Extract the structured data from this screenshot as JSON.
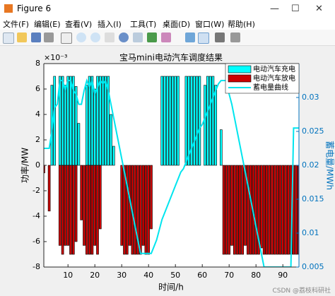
{
  "window": {
    "title": "Figure 6",
    "menus": [
      "文件(F)",
      "编辑(E)",
      "查看(V)",
      "插入(I)",
      "工具(T)",
      "桌面(D)",
      "窗口(W)",
      "帮助(H)"
    ]
  },
  "watermark": "CSDN @荔枝科研社",
  "chart_data": {
    "type": "bar",
    "title": "宝马mini电动汽车调度结果",
    "xlabel": "时间/h",
    "ylabel": "功率/MW",
    "y2label": "蓄电量/MWh",
    "y_exponent": "×10⁻³",
    "x": [
      1,
      2,
      3,
      4,
      5,
      6,
      7,
      8,
      9,
      10,
      11,
      12,
      13,
      14,
      15,
      16,
      17,
      18,
      19,
      20,
      21,
      22,
      23,
      24,
      25,
      26,
      27,
      28,
      29,
      30,
      31,
      32,
      33,
      34,
      35,
      36,
      37,
      38,
      39,
      40,
      41,
      42,
      43,
      44,
      45,
      46,
      47,
      48,
      49,
      50,
      51,
      52,
      53,
      54,
      55,
      56,
      57,
      58,
      59,
      60,
      61,
      62,
      63,
      64,
      65,
      66,
      67,
      68,
      69,
      70,
      71,
      72,
      73,
      74,
      75,
      76,
      77,
      78,
      79,
      80,
      81,
      82,
      83,
      84,
      85,
      86,
      87,
      88,
      89,
      90,
      91,
      92,
      93,
      94,
      95,
      96
    ],
    "series": [
      {
        "name": "电动汽车充电",
        "type": "bar",
        "color": "#00ffff",
        "values": [
          0,
          0,
          0,
          6.3,
          7,
          0,
          7,
          7,
          6.3,
          7,
          7,
          7,
          6.2,
          3.3,
          0,
          0,
          6.3,
          7,
          7,
          6,
          7,
          7,
          7,
          7,
          7,
          4,
          1.5,
          0,
          0,
          0,
          0,
          0,
          0,
          0,
          0,
          0,
          0,
          0,
          0,
          0,
          0,
          0,
          0,
          0,
          7,
          7,
          7,
          7,
          7,
          7,
          7,
          0,
          0,
          7,
          7,
          7,
          7,
          7,
          7,
          0,
          6.3,
          7,
          7,
          7,
          6.3,
          0,
          2.8,
          0,
          0,
          0,
          0,
          0,
          0,
          0,
          0,
          0,
          0,
          0,
          0,
          0,
          0,
          0,
          0,
          0,
          0,
          0,
          0,
          0,
          0,
          0,
          0,
          0,
          0,
          0,
          0,
          0
        ]
      },
      {
        "name": "电动汽车放电",
        "type": "bar",
        "color": "#cc0000",
        "values": [
          -0.6,
          0,
          -3.6,
          0,
          0,
          0,
          -6.3,
          -7,
          -6.3,
          -6.3,
          -7,
          -7,
          -6,
          0,
          -4.3,
          -6.3,
          -7,
          -7,
          -7,
          -6.3,
          -7,
          -5,
          0,
          0,
          0,
          0,
          0,
          0,
          0,
          -6.3,
          -7,
          -7,
          -6.3,
          -7,
          -7,
          -7,
          -7,
          -6.3,
          -7,
          -7,
          -5,
          0,
          0,
          0,
          0,
          0,
          0,
          0,
          0,
          0,
          0,
          0,
          0,
          0,
          0,
          0,
          0,
          0,
          0,
          0,
          0,
          0,
          0,
          0,
          0,
          0,
          0,
          -7,
          -7,
          -7,
          -6.3,
          -7,
          -7,
          -7,
          -7,
          -6.3,
          -7,
          -7,
          -7,
          -7,
          -7,
          -6.5,
          -7,
          -7,
          -7,
          -7,
          -7,
          -7,
          -7,
          -7,
          -7,
          -7,
          -7,
          -7,
          -7,
          -7
        ]
      },
      {
        "name": "蓄电量曲线",
        "type": "line",
        "axis": "y2",
        "color": "#00e5ee",
        "values": [
          0.0225,
          0.0225,
          0.0225,
          0.025,
          0.0285,
          0.029,
          0.0325,
          0.0325,
          0.031,
          0.0325,
          0.0325,
          0.031,
          0.0305,
          0.029,
          0.029,
          0.031,
          0.0325,
          0.0315,
          0.0325,
          0.0305,
          0.0315,
          0.0325,
          0.032,
          0.0325,
          0.031,
          0.029,
          0.027,
          0.025,
          0.023,
          0.021,
          0.019,
          0.017,
          0.015,
          0.013,
          0.011,
          0.009,
          0.007,
          0.007,
          0.007,
          0.007,
          0.007,
          0.008,
          0.009,
          0.0105,
          0.012,
          0.013,
          0.014,
          0.015,
          0.016,
          0.017,
          0.018,
          0.019,
          0.0195,
          0.0205,
          0.0215,
          0.0225,
          0.0235,
          0.0245,
          0.0255,
          0.026,
          0.027,
          0.028,
          0.029,
          0.03,
          0.031,
          0.032,
          0.0325,
          0.0325,
          0.0325,
          0.0305,
          0.029,
          0.027,
          0.025,
          0.023,
          0.021,
          0.019,
          0.017,
          0.015,
          0.013,
          0.011,
          0.009,
          0.007,
          0.005,
          0.005,
          0.005,
          0.005,
          0.005,
          0.005,
          0.005,
          0.005,
          0.005,
          0.005,
          0.005,
          0.0255,
          0.0255,
          0.0255
        ]
      }
    ],
    "xlim": [
      1,
      96
    ],
    "xticks": [
      10,
      20,
      30,
      40,
      50,
      60,
      70,
      80,
      90
    ],
    "ylim": [
      -8,
      8
    ],
    "yticks": [
      -8,
      -6,
      -4,
      -2,
      0,
      2,
      4,
      6,
      8
    ],
    "y2lim": [
      0.005,
      0.035
    ],
    "y2ticks": [
      0.005,
      0.01,
      0.015,
      0.02,
      0.025,
      0.03
    ],
    "y2_color": "#0072bd",
    "grid": false,
    "legend": "top-right"
  }
}
